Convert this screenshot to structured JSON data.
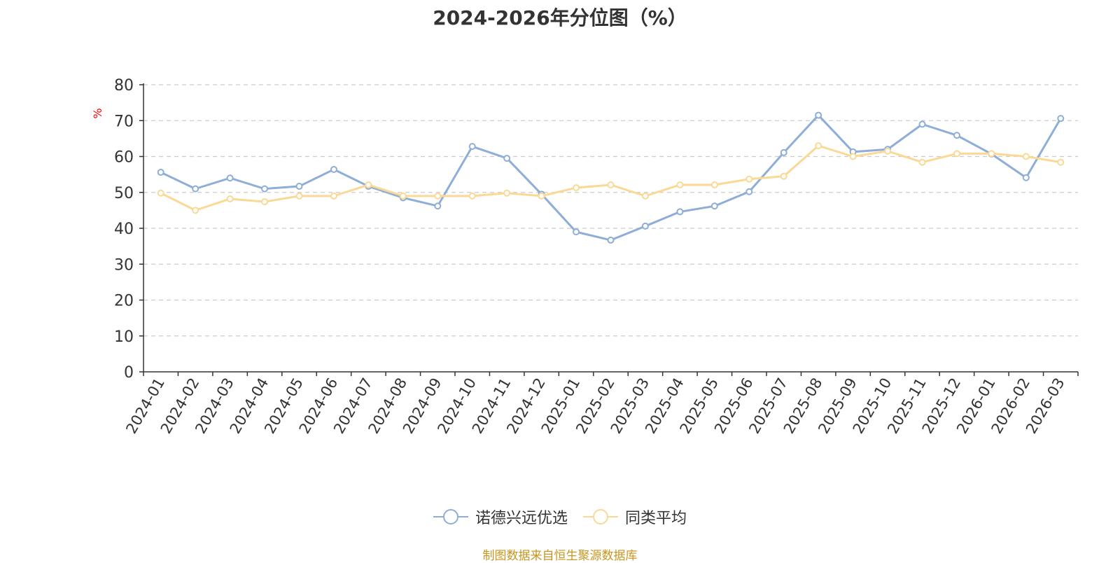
{
  "chart_data": {
    "type": "line",
    "title": "2024-2026年分位图（%）",
    "ylabel": "%",
    "xlabel": "",
    "ylim": [
      0,
      80
    ],
    "yticks": [
      0,
      10,
      20,
      30,
      40,
      50,
      60,
      70,
      80
    ],
    "grid": "horizontal-dashed",
    "legend_position": "bottom",
    "categories": [
      "2024-01",
      "2024-02",
      "2024-03",
      "2024-04",
      "2024-05",
      "2024-06",
      "2024-07",
      "2024-08",
      "2024-09",
      "2024-10",
      "2024-11",
      "2024-12",
      "2025-01",
      "2025-02",
      "2025-03",
      "2025-04",
      "2025-05",
      "2025-06",
      "2025-07",
      "2025-08",
      "2025-09",
      "2025-10",
      "2025-11",
      "2025-12",
      "2026-01",
      "2026-02",
      "2026-03"
    ],
    "series": [
      {
        "name": "诺德兴远优选",
        "color": "#8eaed8",
        "values": [
          55.6,
          51,
          54,
          51,
          51.7,
          56.4,
          51.7,
          48.5,
          46.2,
          62.8,
          59.5,
          49.5,
          39,
          36.7,
          40.6,
          44.6,
          46.2,
          50.2,
          61.1,
          71.5,
          61.3,
          62,
          69,
          65.9,
          60.7,
          54.1,
          70.6
        ]
      },
      {
        "name": "同类平均",
        "color": "#fad996",
        "values": [
          49.8,
          45,
          48.2,
          47.4,
          49,
          49,
          52.1,
          49,
          49,
          49,
          49.8,
          49,
          51.3,
          52.1,
          49,
          52.1,
          52.1,
          53.7,
          54.5,
          63,
          60,
          61.5,
          58.4,
          60.8,
          60.8,
          60,
          58.4
        ]
      }
    ]
  },
  "footer": {
    "source": "制图数据来自恒生聚源数据库"
  }
}
